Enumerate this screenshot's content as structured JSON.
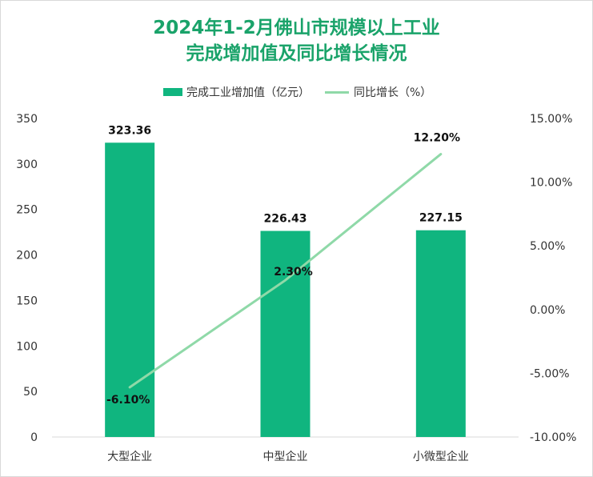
{
  "title_line1": "2024年1-2月佛山市规模以上工业",
  "title_line2": "完成增加值及同比增长情况",
  "colors": {
    "bar": "#10b57f",
    "line": "#8fd9a8",
    "title": "#1aa36a"
  },
  "chart_data": {
    "type": "bar+line",
    "categories": [
      "大型企业",
      "中型企业",
      "小微型企业"
    ],
    "series": [
      {
        "name": "完成工业增加值（亿元）",
        "type": "bar",
        "axis": "left",
        "values": [
          323.36,
          226.43,
          227.15
        ],
        "labels": [
          "323.36",
          "226.43",
          "227.15"
        ]
      },
      {
        "name": "同比增长（%）",
        "type": "line",
        "axis": "right",
        "values": [
          -6.1,
          2.3,
          12.2
        ],
        "labels": [
          "-6.10%",
          "2.30%",
          "12.20%"
        ]
      }
    ],
    "y_left": {
      "min": 0,
      "max": 350,
      "step": 50,
      "ticks": [
        "0",
        "50",
        "100",
        "150",
        "200",
        "250",
        "300",
        "350"
      ]
    },
    "y_right": {
      "min": -10,
      "max": 15,
      "step": 5,
      "ticks": [
        "-10.00%",
        "-5.00%",
        "0.00%",
        "5.00%",
        "10.00%",
        "15.00%"
      ]
    },
    "legend_position": "top",
    "grid": false
  }
}
